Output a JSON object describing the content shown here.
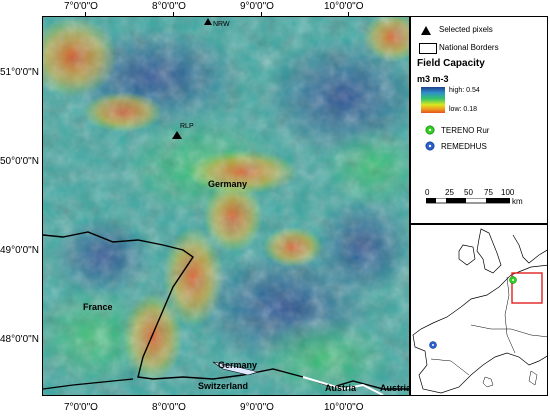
{
  "axes": {
    "x_ticks": [
      "7°0'0\"O",
      "8°0'0\"O",
      "9°0'0\"O",
      "10°0'0\"O"
    ],
    "y_ticks": [
      "51°0'0\"N",
      "50°0'0\"N",
      "49°0'0\"N",
      "48°0'0\"N"
    ]
  },
  "map_labels": {
    "nrw": "NRW",
    "rlp": "RLP",
    "germany": "Germany",
    "germany_south": "Germany",
    "france": "France",
    "switzerland": "Switzerland",
    "austria1": "Austria",
    "austria2": "Austria"
  },
  "legend": {
    "selected_pixels": "Selected pixels",
    "national_borders": "National Borders",
    "title": "Field Capacity",
    "unit": "m3 m-3",
    "high": "high: 0.54",
    "low": "low: 0.18",
    "tereno": "TERENO Rur",
    "remedhus": "REMEDHUS",
    "scale_ticks": [
      "0",
      "25",
      "50",
      "75",
      "100"
    ],
    "scale_unit": "km"
  },
  "colors": {
    "high": "#1f3f8f",
    "mid_high": "#2f8fc8",
    "mid": "#33c46a",
    "mid_low": "#d8e820",
    "low": "#e4521e",
    "tereno_marker": "#2fd11f",
    "remedhus_marker": "#2a5fd0",
    "inset_box": "#e02020"
  }
}
